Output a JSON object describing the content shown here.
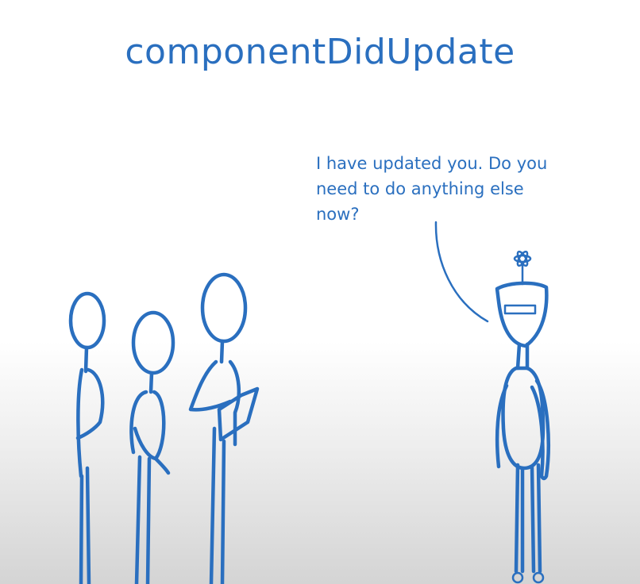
{
  "title": "componentDidUpdate",
  "speech_bubble": {
    "text": "I have updated you. Do you need to do anything else now?"
  },
  "colors": {
    "ink": "#2a6fbf",
    "background_top": "#ffffff",
    "background_bottom": "#d4d4d4"
  },
  "figures": {
    "people_count": 3,
    "robot_icon": "react-atom-icon"
  }
}
